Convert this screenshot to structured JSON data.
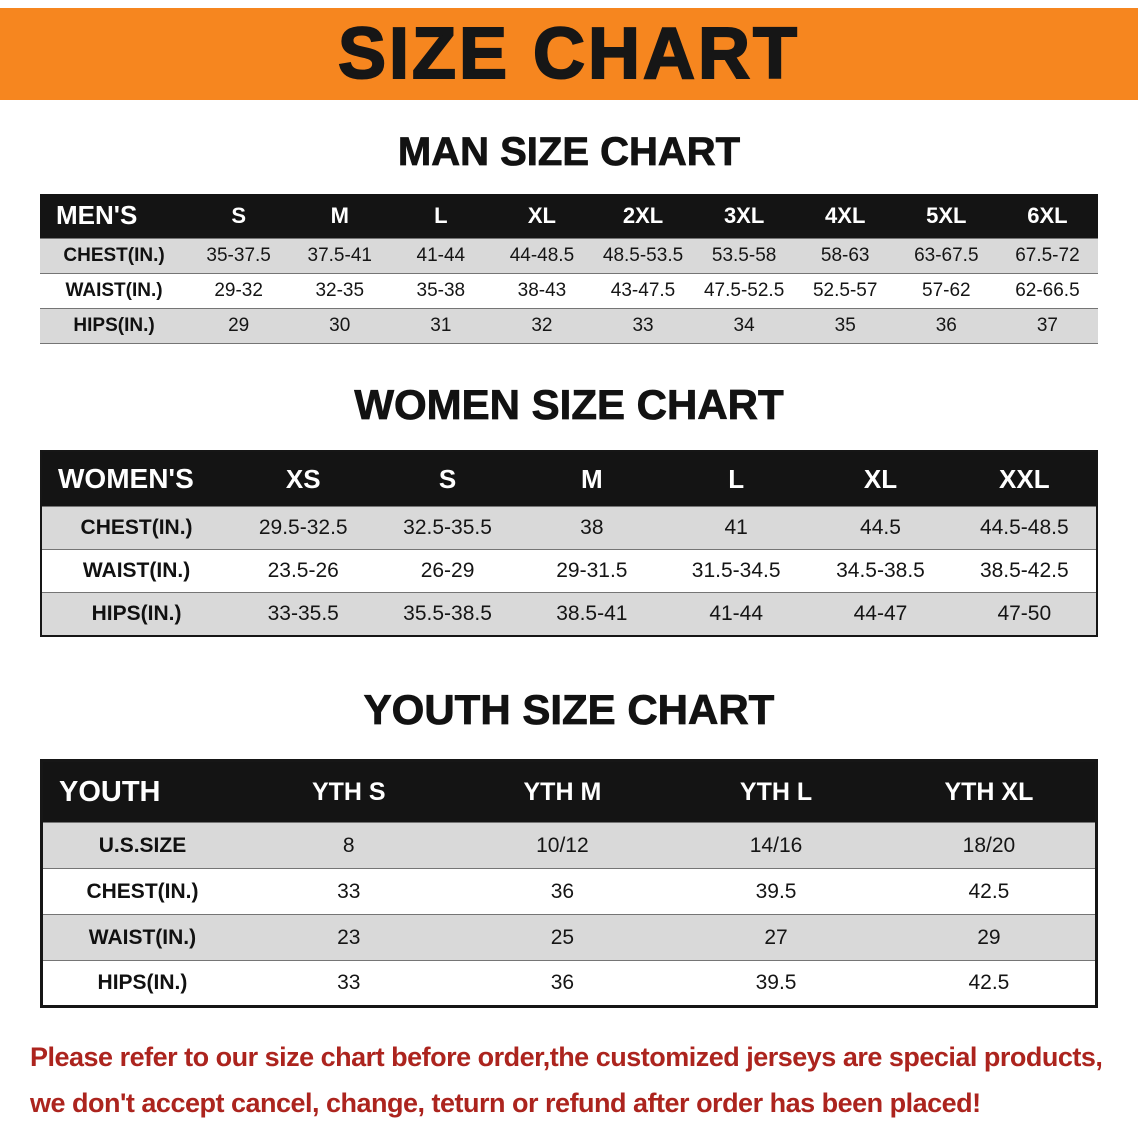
{
  "banner": {
    "title": "SIZE CHART"
  },
  "colors": {
    "banner_bg": "#F6861F",
    "table_header_bg": "#141414",
    "shaded_row": "#D9D9D9",
    "disclaimer_text": "#AC241E"
  },
  "sections": [
    {
      "id": "men",
      "heading": "MAN SIZE CHART",
      "table": {
        "header": [
          "MEN'S",
          "S",
          "M",
          "L",
          "XL",
          "2XL",
          "3XL",
          "4XL",
          "5XL",
          "6XL"
        ],
        "rows": [
          {
            "label": "CHEST(IN.)",
            "values": [
              "35-37.5",
              "37.5-41",
              "41-44",
              "44-48.5",
              "48.5-53.5",
              "53.5-58",
              "58-63",
              "63-67.5",
              "67.5-72"
            ]
          },
          {
            "label": "WAIST(IN.)",
            "values": [
              "29-32",
              "32-35",
              "35-38",
              "38-43",
              "43-47.5",
              "47.5-52.5",
              "52.5-57",
              "57-62",
              "62-66.5"
            ]
          },
          {
            "label": "HIPS(IN.)",
            "values": [
              "29",
              "30",
              "31",
              "32",
              "33",
              "34",
              "35",
              "36",
              "37"
            ]
          }
        ]
      }
    },
    {
      "id": "women",
      "heading": "WOMEN SIZE CHART",
      "table": {
        "header": [
          "WOMEN'S",
          "XS",
          "S",
          "M",
          "L",
          "XL",
          "XXL"
        ],
        "rows": [
          {
            "label": "CHEST(IN.)",
            "values": [
              "29.5-32.5",
              "32.5-35.5",
              "38",
              "41",
              "44.5",
              "44.5-48.5"
            ]
          },
          {
            "label": "WAIST(IN.)",
            "values": [
              "23.5-26",
              "26-29",
              "29-31.5",
              "31.5-34.5",
              "34.5-38.5",
              "38.5-42.5"
            ]
          },
          {
            "label": "HIPS(IN.)",
            "values": [
              "33-35.5",
              "35.5-38.5",
              "38.5-41",
              "41-44",
              "44-47",
              "47-50"
            ]
          }
        ]
      }
    },
    {
      "id": "youth",
      "heading": "YOUTH SIZE CHART",
      "table": {
        "header": [
          "YOUTH",
          "YTH S",
          "YTH M",
          "YTH L",
          "YTH XL"
        ],
        "rows": [
          {
            "label": "U.S.SIZE",
            "values": [
              "8",
              "10/12",
              "14/16",
              "18/20"
            ]
          },
          {
            "label": "CHEST(IN.)",
            "values": [
              "33",
              "36",
              "39.5",
              "42.5"
            ]
          },
          {
            "label": "WAIST(IN.)",
            "values": [
              "23",
              "25",
              "27",
              "29"
            ]
          },
          {
            "label": "HIPS(IN.)",
            "values": [
              "33",
              "36",
              "39.5",
              "42.5"
            ]
          }
        ]
      }
    }
  ],
  "disclaimer": {
    "line1": "Please refer to our size chart before order,the customized jerseys are special products,",
    "line2": "we don't accept cancel, change, teturn or refund after order has been placed!"
  }
}
